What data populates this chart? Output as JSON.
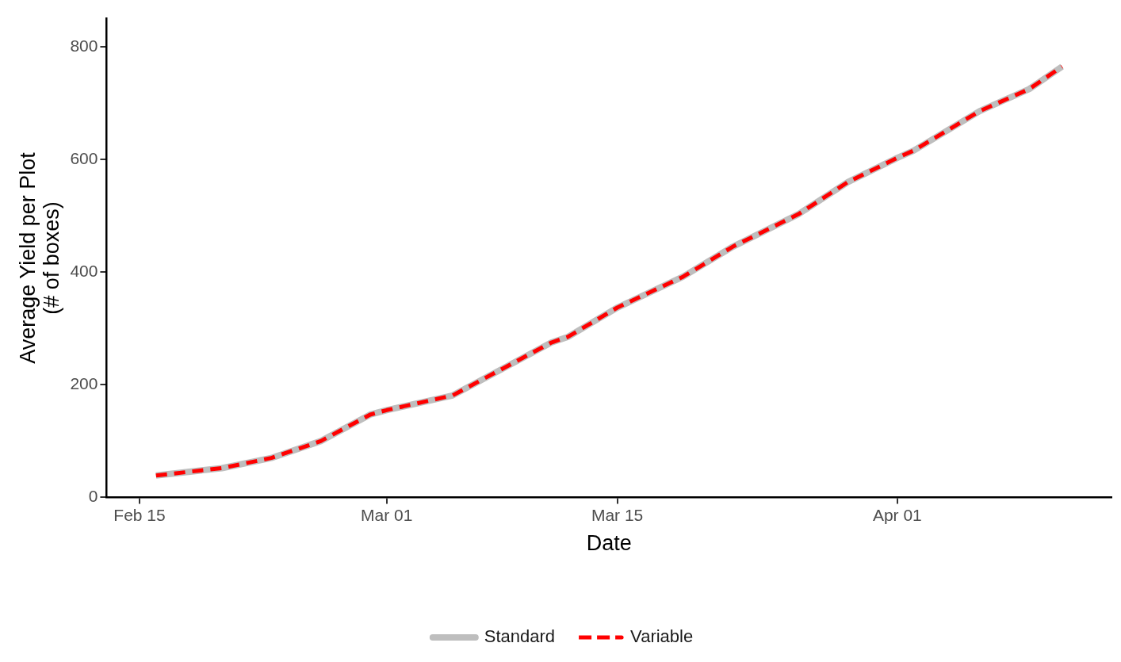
{
  "chart_data": {
    "type": "line",
    "xlabel": "Date",
    "ylabel": "Average Yield per Plot\n(# of boxes)",
    "x": [
      "--02-16",
      "--02-20",
      "--02-23",
      "--02-26",
      "--02-29",
      "--03-01",
      "--03-05",
      "--03-08",
      "--03-11",
      "--03-12",
      "--03-15",
      "--03-19",
      "--03-22",
      "--03-26",
      "--03-29",
      "--04-01",
      "--04-02",
      "--04-06",
      "--04-09",
      "--04-11"
    ],
    "series": [
      {
        "name": "Standard",
        "color": "#bebebe",
        "line_style": "solid",
        "values": [
          39,
          52,
          70,
          100,
          147,
          155,
          181,
          228,
          275,
          285,
          337,
          392,
          445,
          503,
          560,
          603,
          616,
          686,
          725,
          765
        ]
      },
      {
        "name": "Variable",
        "color": "#ff0000",
        "line_style": "dashed",
        "values": [
          39,
          52,
          70,
          100,
          147,
          155,
          181,
          228,
          275,
          285,
          337,
          392,
          445,
          503,
          560,
          603,
          616,
          686,
          725,
          765
        ]
      }
    ],
    "xlim": [
      "--02-13",
      "--04-14"
    ],
    "xticks": [
      {
        "value": "--02-15",
        "label": "Feb 15"
      },
      {
        "value": "--03-01",
        "label": "Mar 01"
      },
      {
        "value": "--03-15",
        "label": "Mar 15"
      },
      {
        "value": "--04-01",
        "label": "Apr 01"
      }
    ],
    "ylim": [
      0,
      850
    ],
    "yticks": [
      0,
      200,
      400,
      600,
      800
    ],
    "grid": false,
    "legend": "bottom",
    "marker": "none"
  }
}
